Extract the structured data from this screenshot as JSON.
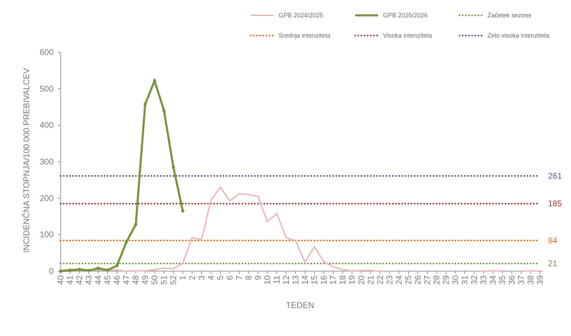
{
  "chart_data": {
    "type": "line",
    "title": "",
    "xlabel": "TEDEN",
    "ylabel": "INCIDENČNA  STOPNJA/100.000  PREBIVALCEV",
    "ylim": [
      0,
      600
    ],
    "yticks": [
      0,
      100,
      200,
      300,
      400,
      500,
      600
    ],
    "grid": false,
    "legend_position": "top",
    "categories": [
      "40",
      "41",
      "42",
      "43",
      "44",
      "45",
      "46",
      "47",
      "48",
      "49",
      "50",
      "51",
      "52",
      "1",
      "2",
      "3",
      "4",
      "5",
      "6",
      "7",
      "8",
      "9",
      "10",
      "11",
      "12",
      "13",
      "14",
      "15",
      "16",
      "17",
      "18",
      "19",
      "20",
      "21",
      "22",
      "23",
      "24",
      "25",
      "26",
      "27",
      "28",
      "29",
      "30",
      "31",
      "32",
      "33",
      "34",
      "35",
      "36",
      "37",
      "38",
      "39"
    ],
    "series": [
      {
        "name": "GPB 2024/2025",
        "color": "#e6b8b8",
        "markers": false,
        "values": [
          2,
          6,
          4,
          2,
          3,
          3,
          3,
          0,
          1,
          1,
          4,
          8,
          7,
          22,
          92,
          87,
          195,
          230,
          193,
          212,
          210,
          205,
          136,
          158,
          92,
          83,
          25,
          67,
          26,
          12,
          5,
          0,
          2,
          2,
          0,
          null,
          null,
          null,
          null,
          null,
          null,
          null,
          null,
          null,
          null,
          0,
          1,
          0,
          null,
          0,
          1,
          0
        ]
      },
      {
        "name": "GPB 2025/2026",
        "color": "#76923c",
        "markers": true,
        "values": [
          0,
          2,
          5,
          2,
          8,
          3,
          15,
          80,
          128,
          458,
          522,
          440,
          285,
          165,
          null,
          null,
          null,
          null,
          null,
          null,
          null,
          null,
          null,
          null,
          null,
          null,
          null,
          null,
          null,
          null,
          null,
          null,
          null,
          null,
          null,
          null,
          null,
          null,
          null,
          null,
          null,
          null,
          null,
          null,
          null,
          null,
          null,
          null,
          null,
          null,
          null,
          null
        ]
      }
    ],
    "thresholds": [
      {
        "name": "Začetek sezone",
        "value": 21,
        "label": "21",
        "color": "#76923c"
      },
      {
        "name": "Srednja intenziteta",
        "value": 84,
        "label": "84",
        "color": "#e36c09"
      },
      {
        "name": "Visoka intenziteta",
        "value": 185,
        "label": "185",
        "color": "#953735"
      },
      {
        "name": "Zelo visoka intenziteta",
        "value": 261,
        "label": "261",
        "color": "#604a7b"
      }
    ]
  }
}
